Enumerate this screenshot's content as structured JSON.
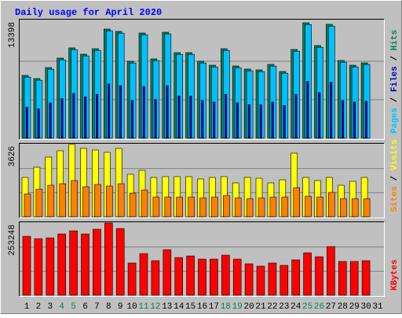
{
  "chart_data": {
    "type": "bar",
    "title": "Daily usage for April 2020",
    "categories": [
      "1",
      "2",
      "3",
      "4",
      "5",
      "6",
      "7",
      "8",
      "9",
      "10",
      "11",
      "12",
      "13",
      "14",
      "15",
      "16",
      "17",
      "18",
      "19",
      "20",
      "21",
      "22",
      "23",
      "24",
      "25",
      "26",
      "27",
      "28",
      "29",
      "30",
      "31"
    ],
    "category_colors": [
      "#000000",
      "#000000",
      "#000000",
      "#00805c",
      "#00805c",
      "#000000",
      "#000000",
      "#000000",
      "#000000",
      "#000000",
      "#00805c",
      "#00805c",
      "#000000",
      "#000000",
      "#000000",
      "#000000",
      "#000000",
      "#00805c",
      "#00805c",
      "#000000",
      "#000000",
      "#000000",
      "#000000",
      "#000000",
      "#00805c",
      "#00805c",
      "#000000",
      "#000000",
      "#000000",
      "#000000",
      "#000000"
    ],
    "legend_separator": " / ",
    "grid_divisions": 3,
    "panels": [
      {
        "ylim": [
          0,
          13398
        ],
        "yticks": [
          13398
        ],
        "series": [
          {
            "name": "Pages",
            "color": "#00c0ff",
            "values": [
              7091,
              6727,
              8003,
              9097,
              10282,
              9552,
              10190,
              12469,
              12196,
              8732,
              12013,
              9006,
              12104,
              9735,
              9735,
              8732,
              8276,
              10190,
              8185,
              7821,
              7730,
              8368,
              7547,
              10099,
              13198,
              10555,
              13016,
              8823,
              8276,
              8550,
              null
            ]
          },
          {
            "name": "Files",
            "color": "#0000c0",
            "values": [
              3600,
              3400,
              4100,
              4600,
              5200,
              4800,
              5100,
              6300,
              6100,
              4400,
              6000,
              4500,
              6100,
              4900,
              4900,
              4400,
              4200,
              5100,
              4100,
              3900,
              3900,
              4200,
              3800,
              5100,
              6600,
              5300,
              6500,
              4400,
              4200,
              4300,
              null
            ]
          },
          {
            "name": "Hits",
            "color": "#00805c",
            "values": [
              7291,
              6927,
              8203,
              9297,
              10482,
              9752,
              10390,
              12669,
              12396,
              8932,
              12213,
              9206,
              12304,
              9935,
              9935,
              8932,
              8476,
              10390,
              8385,
              8021,
              7930,
              8568,
              7747,
              10299,
              13398,
              10755,
              13216,
              9023,
              8476,
              8750,
              null
            ]
          }
        ]
      },
      {
        "ylim": [
          0,
          3626
        ],
        "yticks": [
          3626
        ],
        "series": [
          {
            "name": "Sites",
            "color": "#ff8000",
            "values": [
              1143,
              1379,
              1577,
              1655,
              1813,
              1498,
              1616,
              1537,
              1655,
              1182,
              1340,
              985,
              985,
              985,
              985,
              946,
              985,
              1064,
              946,
              906,
              946,
              985,
              985,
              1458,
              1025,
              985,
              1222,
              906,
              906,
              906,
              null
            ]
          },
          {
            "name": "Visits",
            "color": "#ffff00",
            "values": [
              1971,
              2483,
              2995,
              3311,
              3626,
              3429,
              3350,
              3232,
              3429,
              2128,
              2325,
              1971,
              2010,
              2010,
              2010,
              1892,
              1971,
              2010,
              1695,
              1971,
              1931,
              1695,
              1852,
              3192,
              1971,
              1813,
              1971,
              1577,
              1774,
              1971,
              null
            ]
          }
        ]
      },
      {
        "ylim": [
          0,
          253248
        ],
        "yticks": [
          253248
        ],
        "series": [
          {
            "name": "KBytes",
            "color": "#ff0000",
            "values": [
              206452,
              198194,
              200947,
              214711,
              225721,
              214711,
              231227,
              253248,
              233979,
              112860,
              145892,
              121119,
              159656,
              132129,
              137635,
              126624,
              126624,
              140388,
              126624,
              110108,
              101850,
              112860,
              104602,
              123871,
              148646,
              134882,
              170667,
              118366,
              118366,
              121119,
              null
            ]
          }
        ]
      }
    ]
  }
}
